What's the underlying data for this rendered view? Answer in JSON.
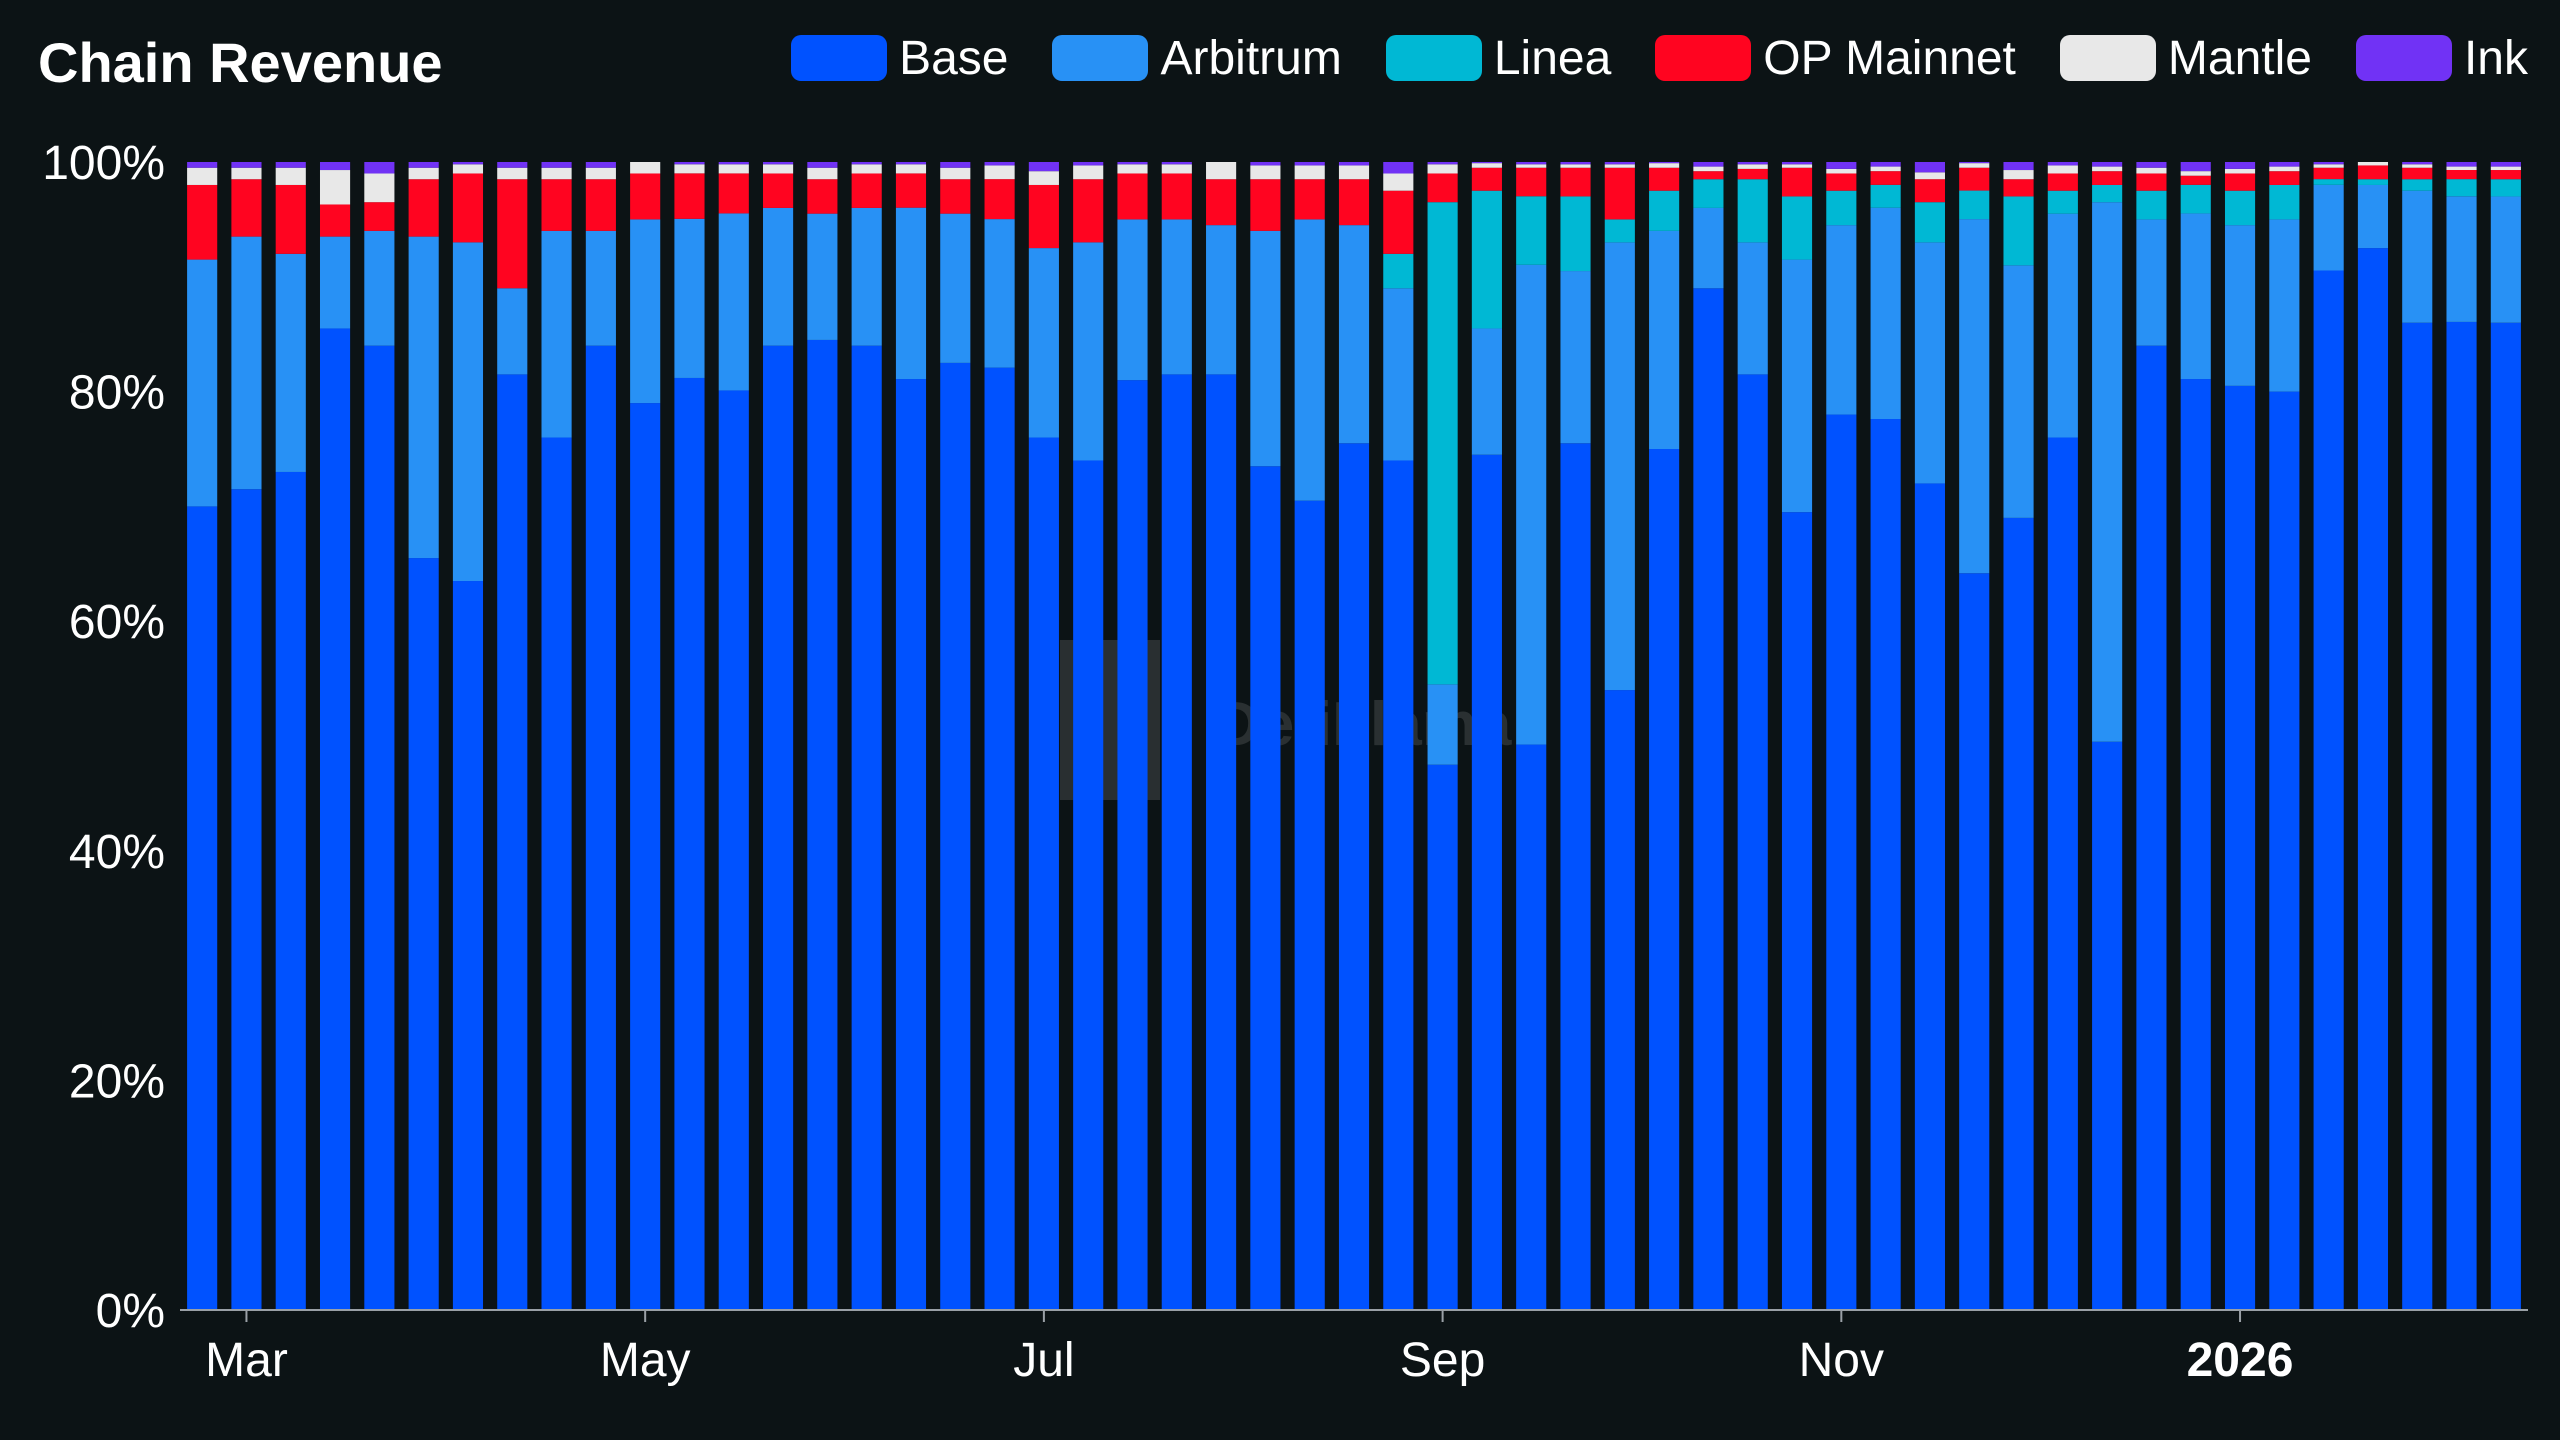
{
  "chart_data": {
    "type": "bar",
    "stacked": true,
    "normalized": true,
    "title": "Chain Revenue",
    "xlabel": "",
    "ylabel": "",
    "ylim": [
      0,
      100
    ],
    "y_ticks": [
      "0%",
      "20%",
      "40%",
      "60%",
      "80%",
      "100%"
    ],
    "x_ticks": [
      {
        "label": "Mar",
        "bar_index": 1,
        "bold": false
      },
      {
        "label": "May",
        "bar_index": 10,
        "bold": false
      },
      {
        "label": "Jul",
        "bar_index": 19,
        "bold": false
      },
      {
        "label": "Sep",
        "bar_index": 28,
        "bold": false
      },
      {
        "label": "Nov",
        "bar_index": 37,
        "bold": false
      },
      {
        "label": "2026",
        "bar_index": 46,
        "bold": true
      }
    ],
    "legend_position": "top-right",
    "grid": false,
    "watermark": "DefiLlama",
    "series": [
      {
        "name": "Base",
        "color": "#0052ff",
        "values": [
          70,
          71.5,
          73,
          85.5,
          84,
          65.5,
          63.5,
          81.5,
          76,
          84,
          79,
          82,
          80.5,
          84,
          84.5,
          84,
          81.5,
          82.5,
          82.5,
          76,
          74,
          81,
          81.5,
          81.5,
          73.5,
          70.5,
          75.5,
          74,
          47.5,
          74.5,
          49.5,
          75.5,
          54,
          75,
          89,
          81.5,
          69.5,
          78,
          78,
          72,
          64.5,
          69,
          76,
          49.5,
          84,
          81.5,
          80.5,
          80,
          91,
          92.5,
          86,
          86.5,
          86
        ]
      },
      {
        "name": "Arbitrum",
        "color": "#2891f5",
        "values": [
          21.5,
          22,
          19,
          8,
          10,
          28,
          29.5,
          7.5,
          18,
          10,
          16,
          14,
          15.5,
          12,
          11,
          12,
          15,
          13,
          13,
          16.5,
          19,
          14,
          13.5,
          13,
          20.5,
          24.5,
          19,
          15,
          7,
          11,
          42,
          15,
          39,
          19,
          7,
          11.5,
          22,
          16.5,
          18.5,
          21,
          31,
          22,
          19.5,
          47,
          11,
          14.5,
          14,
          15,
          7.5,
          5.5,
          11.5,
          11,
          11
        ]
      },
      {
        "name": "Linea",
        "color": "#00b8d4",
        "values": [
          0,
          0,
          0,
          0,
          0,
          0,
          0,
          0,
          0,
          0,
          0,
          0,
          0,
          0,
          0,
          0,
          0,
          0,
          0,
          0,
          0,
          0,
          0,
          0,
          0,
          0,
          0,
          3,
          42,
          12,
          6,
          6.5,
          2,
          3.5,
          2.5,
          5.5,
          5.5,
          3,
          2,
          3.5,
          2.5,
          6,
          2,
          1.5,
          2.5,
          2.5,
          3,
          3,
          0.5,
          0.5,
          1,
          1.5,
          1.5
        ]
      },
      {
        "name": "OP Mainnet",
        "color": "#ff0420",
        "values": [
          6.5,
          5,
          6,
          2.8,
          2.5,
          5,
          6,
          9.5,
          4.5,
          4.5,
          4,
          4,
          3.5,
          3,
          3,
          3,
          3,
          3,
          3.5,
          5.5,
          5.5,
          4,
          4,
          4,
          4.5,
          3.5,
          4,
          5.5,
          2.5,
          2,
          2.5,
          2.5,
          4.5,
          2,
          0.7,
          0.9,
          2.5,
          1.5,
          1.2,
          2,
          2,
          1.5,
          1.5,
          1.2,
          1.5,
          0.8,
          1.5,
          1.2,
          1,
          1.2,
          1,
          0.8,
          0.8
        ]
      },
      {
        "name": "Mantle",
        "color": "#e8e8e8",
        "values": [
          1.5,
          1,
          1.5,
          3,
          2.5,
          1,
          0.8,
          1,
          1,
          1,
          1,
          0.8,
          0.8,
          0.8,
          1,
          0.8,
          0.8,
          1,
          1.2,
          1.2,
          1.2,
          0.8,
          0.8,
          1.5,
          1.2,
          1.2,
          1.2,
          1.5,
          0.8,
          0.4,
          0.3,
          0.3,
          0.3,
          0.4,
          0.4,
          0.4,
          0.3,
          0.4,
          0.4,
          0.6,
          0.4,
          0.8,
          0.7,
          0.4,
          0.5,
          0.4,
          0.4,
          0.4,
          0.3,
          0.3,
          0.3,
          0.3,
          0.3
        ]
      },
      {
        "name": "Ink",
        "color": "#7132f5",
        "values": [
          0.5,
          0.5,
          0.5,
          0.7,
          1,
          0.5,
          0.2,
          0.5,
          0.5,
          0.5,
          0,
          0.2,
          0.2,
          0.2,
          0.5,
          0.2,
          0.2,
          0.5,
          0.3,
          0.8,
          0.3,
          0.2,
          0.2,
          0,
          0.3,
          0.3,
          0.3,
          1,
          0.2,
          0.1,
          0.2,
          0.2,
          0.2,
          0.1,
          0.4,
          0.2,
          0.2,
          0.6,
          0.4,
          0.9,
          0.1,
          0.7,
          0.3,
          0.4,
          0.5,
          0.8,
          0.6,
          0.4,
          0.2,
          0.0,
          0.2,
          0.4,
          0.4
        ]
      }
    ]
  }
}
